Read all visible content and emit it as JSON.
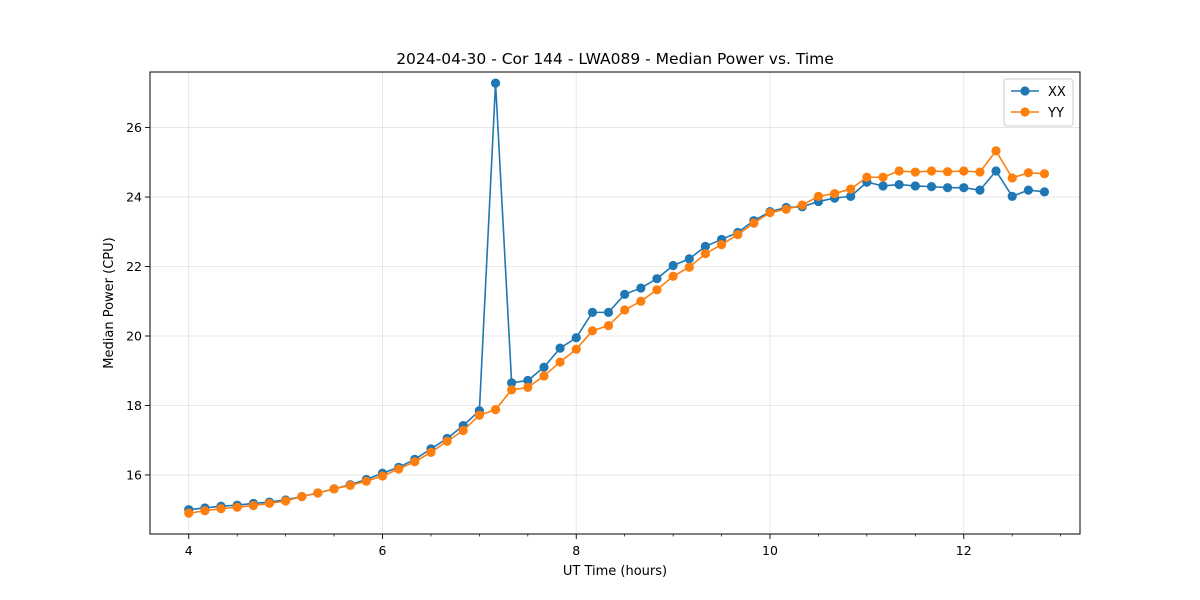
{
  "chart_data": {
    "type": "line",
    "title": "2024-04-30 - Cor 144 - LWA089 - Median Power vs. Time",
    "xlabel": "UT Time (hours)",
    "ylabel": "Median Power (CPU)",
    "xlim": [
      3.6,
      13.2
    ],
    "ylim": [
      14.3,
      27.6
    ],
    "xticks": [
      4,
      6,
      8,
      10,
      12
    ],
    "yticks": [
      16,
      18,
      20,
      22,
      24,
      26
    ],
    "grid": true,
    "legend_position": "top-right",
    "x": [
      4.0,
      4.167,
      4.333,
      4.5,
      4.667,
      4.833,
      5.0,
      5.167,
      5.333,
      5.5,
      5.667,
      5.833,
      6.0,
      6.167,
      6.333,
      6.5,
      6.667,
      6.833,
      7.0,
      7.167,
      7.333,
      7.5,
      7.667,
      7.833,
      8.0,
      8.167,
      8.333,
      8.5,
      8.667,
      8.833,
      9.0,
      9.167,
      9.333,
      9.5,
      9.667,
      9.833,
      10.0,
      10.167,
      10.333,
      10.5,
      10.667,
      10.833,
      11.0,
      11.167,
      11.333,
      11.5,
      11.667,
      11.833,
      12.0,
      12.167,
      12.333,
      12.5,
      12.667,
      12.833
    ],
    "series": [
      {
        "name": "XX",
        "color": "#1f77b4",
        "values": [
          15.0,
          15.05,
          15.1,
          15.13,
          15.18,
          15.22,
          15.28,
          15.38,
          15.48,
          15.6,
          15.72,
          15.87,
          16.05,
          16.22,
          16.45,
          16.75,
          17.05,
          17.42,
          17.85,
          27.28,
          18.65,
          18.72,
          19.1,
          19.65,
          19.95,
          20.68,
          20.68,
          21.2,
          21.38,
          21.65,
          22.03,
          22.22,
          22.58,
          22.78,
          22.98,
          23.32,
          23.58,
          23.7,
          23.72,
          23.87,
          23.97,
          24.02,
          24.43,
          24.32,
          24.36,
          24.32,
          24.3,
          24.27,
          24.27,
          24.2,
          24.75,
          24.02,
          24.2,
          24.15
        ]
      },
      {
        "name": "YY",
        "color": "#ff7f0e",
        "values": [
          14.9,
          14.97,
          15.03,
          15.07,
          15.12,
          15.18,
          15.25,
          15.38,
          15.48,
          15.6,
          15.7,
          15.82,
          15.97,
          16.17,
          16.38,
          16.65,
          16.97,
          17.28,
          17.72,
          17.88,
          18.45,
          18.52,
          18.85,
          19.25,
          19.62,
          20.15,
          20.3,
          20.75,
          21.0,
          21.33,
          21.72,
          21.98,
          22.37,
          22.63,
          22.92,
          23.25,
          23.55,
          23.65,
          23.77,
          24.02,
          24.1,
          24.23,
          24.57,
          24.57,
          24.75,
          24.72,
          24.75,
          24.73,
          24.75,
          24.72,
          25.33,
          24.55,
          24.7,
          24.67
        ]
      }
    ]
  }
}
